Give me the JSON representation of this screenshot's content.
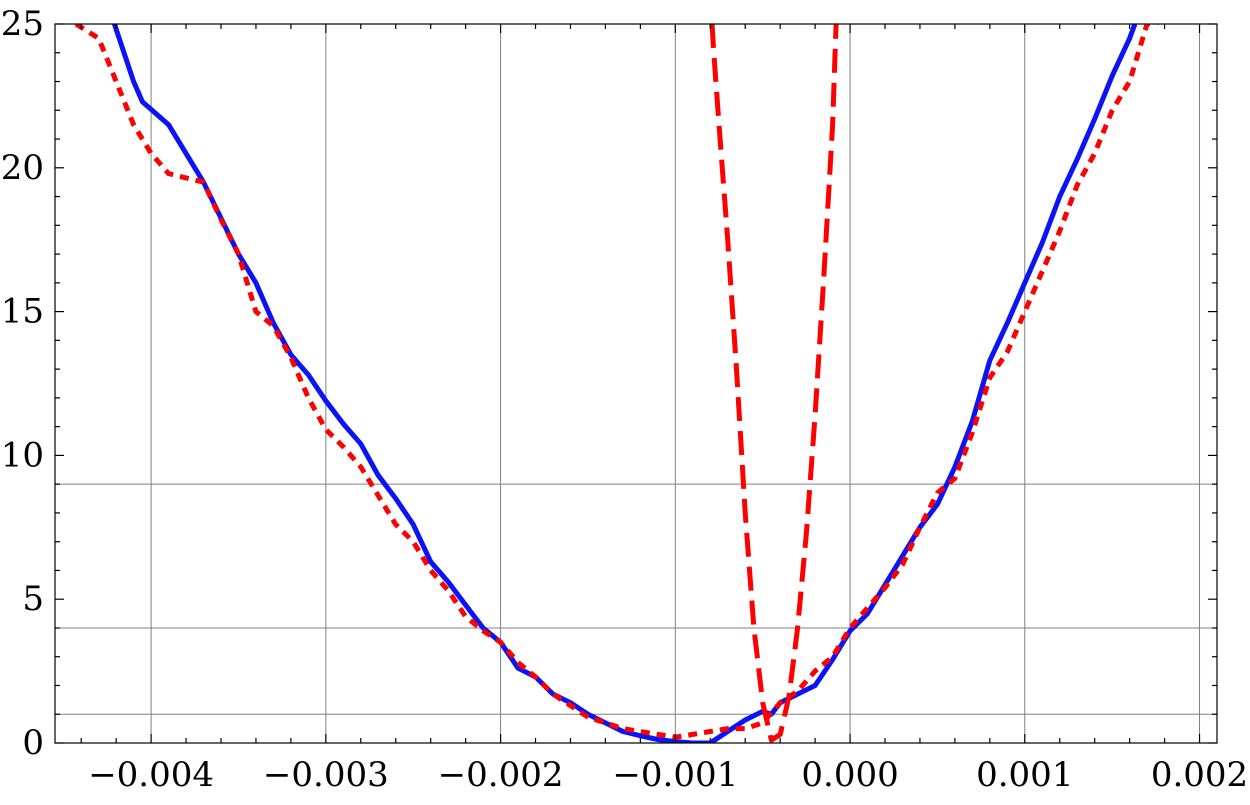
{
  "chart_data": {
    "type": "line",
    "title": "",
    "xlabel": "",
    "ylabel": "",
    "xlim": [
      -0.00455,
      0.0021
    ],
    "ylim": [
      0,
      25
    ],
    "grid": true,
    "x_ticks": [
      -0.004,
      -0.003,
      -0.002,
      -0.001,
      0.0,
      0.001,
      0.002
    ],
    "x_tick_labels": [
      "−0.004",
      "−0.003",
      "−0.002",
      "−0.001",
      "0.000",
      "0.001",
      "0.002"
    ],
    "y_ticks": [
      0,
      5,
      10,
      15,
      20,
      25
    ],
    "y_tick_labels": [
      "0",
      "5",
      "10",
      "15",
      "20",
      "25"
    ],
    "reference_lines_y": [
      1,
      4,
      9
    ],
    "series": [
      {
        "style": "solid",
        "color": "#0a14f5",
        "points": [
          [
            -0.00421,
            25
          ],
          [
            -0.0041,
            23.0
          ],
          [
            -0.00405,
            22.3
          ],
          [
            -0.0039,
            21.5
          ],
          [
            -0.0037,
            19.5
          ],
          [
            -0.0035,
            17.0
          ],
          [
            -0.0034,
            16.0
          ],
          [
            -0.0033,
            14.6
          ],
          [
            -0.0032,
            13.5
          ],
          [
            -0.0031,
            12.8
          ],
          [
            -0.003,
            11.9
          ],
          [
            -0.0029,
            11.1
          ],
          [
            -0.0028,
            10.4
          ],
          [
            -0.0027,
            9.3
          ],
          [
            -0.0026,
            8.5
          ],
          [
            -0.0025,
            7.6
          ],
          [
            -0.0024,
            6.3
          ],
          [
            -0.0023,
            5.6
          ],
          [
            -0.0022,
            4.8
          ],
          [
            -0.0021,
            4.0
          ],
          [
            -0.002,
            3.5
          ],
          [
            -0.0019,
            2.6
          ],
          [
            -0.0018,
            2.3
          ],
          [
            -0.0017,
            1.7
          ],
          [
            -0.0016,
            1.4
          ],
          [
            -0.0015,
            1.0
          ],
          [
            -0.0014,
            0.7
          ],
          [
            -0.0013,
            0.4
          ],
          [
            -0.0012,
            0.25
          ],
          [
            -0.0011,
            0.12
          ],
          [
            -0.001,
            0.05
          ],
          [
            -0.0009,
            0.0
          ],
          [
            -0.0008,
            0.0
          ],
          [
            -0.0007,
            0.4
          ],
          [
            -0.0006,
            0.8
          ],
          [
            -0.0005,
            1.1
          ],
          [
            -0.00045,
            1.0
          ],
          [
            -0.0004,
            1.4
          ],
          [
            -0.0003,
            1.7
          ],
          [
            -0.0002,
            2.0
          ],
          [
            -0.0001,
            2.9
          ],
          [
            0.0,
            3.9
          ],
          [
            0.0001,
            4.5
          ],
          [
            0.0002,
            5.5
          ],
          [
            0.0003,
            6.5
          ],
          [
            0.0004,
            7.5
          ],
          [
            0.0005,
            8.3
          ],
          [
            0.0006,
            9.6
          ],
          [
            0.0007,
            11.2
          ],
          [
            0.0008,
            13.3
          ],
          [
            0.0009,
            14.6
          ],
          [
            0.001,
            16.0
          ],
          [
            0.0011,
            17.4
          ],
          [
            0.0012,
            19.0
          ],
          [
            0.0013,
            20.3
          ],
          [
            0.0014,
            21.7
          ],
          [
            0.0015,
            23.2
          ],
          [
            0.0016,
            24.5
          ],
          [
            0.00163,
            25
          ]
        ]
      },
      {
        "style": "dotted",
        "color": "#ff0000",
        "points": [
          [
            -0.00443,
            25
          ],
          [
            -0.0043,
            24.5
          ],
          [
            -0.0042,
            23.0
          ],
          [
            -0.0041,
            21.5
          ],
          [
            -0.004,
            20.5
          ],
          [
            -0.0039,
            19.8
          ],
          [
            -0.0037,
            19.5
          ],
          [
            -0.0036,
            18.2
          ],
          [
            -0.0035,
            17.0
          ],
          [
            -0.0034,
            15.0
          ],
          [
            -0.0033,
            14.5
          ],
          [
            -0.0032,
            13.4
          ],
          [
            -0.0031,
            12.0
          ],
          [
            -0.003,
            10.9
          ],
          [
            -0.0029,
            10.3
          ],
          [
            -0.0028,
            9.6
          ],
          [
            -0.0027,
            8.6
          ],
          [
            -0.0026,
            7.6
          ],
          [
            -0.0025,
            7.0
          ],
          [
            -0.0024,
            6.0
          ],
          [
            -0.0023,
            5.3
          ],
          [
            -0.0022,
            4.4
          ],
          [
            -0.0021,
            3.9
          ],
          [
            -0.002,
            3.5
          ],
          [
            -0.0019,
            2.8
          ],
          [
            -0.0018,
            2.3
          ],
          [
            -0.0017,
            1.7
          ],
          [
            -0.0016,
            1.3
          ],
          [
            -0.0015,
            0.9
          ],
          [
            -0.0014,
            0.7
          ],
          [
            -0.0013,
            0.5
          ],
          [
            -0.0012,
            0.4
          ],
          [
            -0.0011,
            0.3
          ],
          [
            -0.001,
            0.2
          ],
          [
            -0.0009,
            0.3
          ],
          [
            -0.0008,
            0.4
          ],
          [
            -0.0007,
            0.5
          ],
          [
            -0.0006,
            0.5
          ],
          [
            -0.0005,
            0.7
          ],
          [
            -0.0004,
            1.4
          ],
          [
            -0.0003,
            1.8
          ],
          [
            -0.0002,
            2.5
          ],
          [
            -0.0001,
            3.0
          ],
          [
            0.0,
            4.0
          ],
          [
            0.0001,
            4.7
          ],
          [
            0.0002,
            5.4
          ],
          [
            0.0003,
            6.2
          ],
          [
            0.0004,
            7.5
          ],
          [
            0.0005,
            8.7
          ],
          [
            0.0006,
            9.2
          ],
          [
            0.0007,
            10.8
          ],
          [
            0.0008,
            12.7
          ],
          [
            0.0009,
            13.6
          ],
          [
            0.001,
            15.0
          ],
          [
            0.0011,
            16.4
          ],
          [
            0.0012,
            17.8
          ],
          [
            0.0013,
            19.4
          ],
          [
            0.0014,
            20.5
          ],
          [
            0.0015,
            22.0
          ],
          [
            0.0016,
            23.0
          ],
          [
            0.0017,
            25
          ],
          [
            0.0019,
            25.2
          ],
          [
            0.002,
            25.6
          ]
        ]
      },
      {
        "style": "dashed",
        "color": "#ff0000",
        "points": [
          [
            -0.00079,
            25
          ],
          [
            -0.00078,
            24.0
          ],
          [
            -0.00075,
            21.5
          ],
          [
            -0.0007,
            17.5
          ],
          [
            -0.00065,
            13.0
          ],
          [
            -0.0006,
            8.0
          ],
          [
            -0.00055,
            4.0
          ],
          [
            -0.0005,
            1.4
          ],
          [
            -0.00045,
            0.1
          ],
          [
            -0.0004,
            0.3
          ],
          [
            -0.00035,
            1.6
          ],
          [
            -0.0003,
            4.0
          ],
          [
            -0.00025,
            7.3
          ],
          [
            -0.0002,
            11.4
          ],
          [
            -0.00015,
            16.2
          ],
          [
            -0.0001,
            21.5
          ],
          [
            -8e-05,
            25
          ]
        ]
      }
    ]
  }
}
